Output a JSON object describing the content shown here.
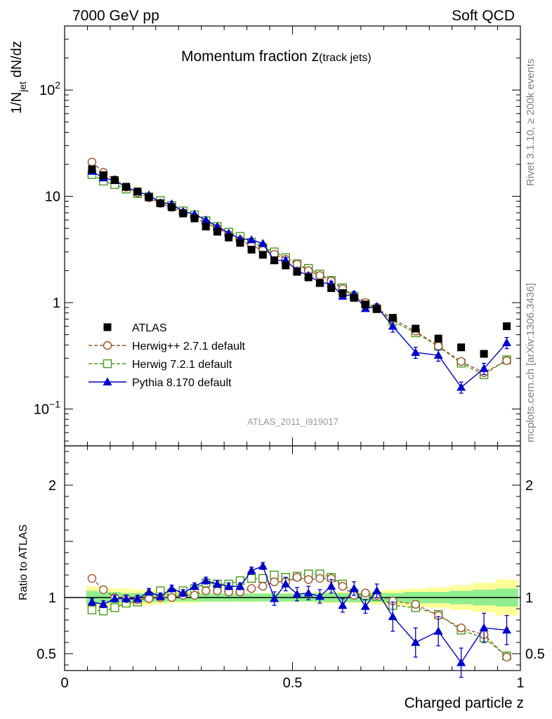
{
  "header": {
    "left": "7000 GeV pp",
    "right": "Soft QCD"
  },
  "side_labels": {
    "rivet": "Rivet 3.1.10, ≥ 200k events",
    "mcplots": "mcplots.cern.ch [arXiv:1306.3436]"
  },
  "colors": {
    "atlas": "#000000",
    "herwigpp": "#a0522d",
    "herwig7": "#4a9a1a",
    "pythia": "#0000cc",
    "band_inner": "#90ee90",
    "band_outer": "#ffff99"
  },
  "chart_data": [
    {
      "type": "scatter",
      "panel": "main",
      "title": "Momentum fraction z",
      "title_suffix": "(track jets)",
      "ylabel": "1/N_jet dN/dz",
      "ylabel_prefix": "1/N",
      "ylabel_sub": "jet",
      "ylabel_suffix": " dN/dz",
      "yscale": "log",
      "xlim": [
        0,
        1
      ],
      "ylim": [
        0.045,
        400
      ],
      "y_ticks": [
        {
          "value": 0.1,
          "base": "10",
          "exp": "−1"
        },
        {
          "value": 1,
          "base": "1",
          "exp": ""
        },
        {
          "value": 10,
          "base": "10",
          "exp": ""
        },
        {
          "value": 100,
          "base": "10",
          "exp": "2"
        }
      ],
      "watermark": "ATLAS_2011_I919017",
      "legend_position": "lower-left",
      "x": [
        0.06,
        0.085,
        0.11,
        0.135,
        0.16,
        0.185,
        0.21,
        0.235,
        0.26,
        0.285,
        0.31,
        0.335,
        0.36,
        0.385,
        0.41,
        0.435,
        0.46,
        0.485,
        0.51,
        0.535,
        0.56,
        0.585,
        0.61,
        0.635,
        0.66,
        0.685,
        0.72,
        0.77,
        0.82,
        0.87,
        0.92,
        0.97
      ],
      "series": [
        {
          "name": "ATLAS",
          "key": "atlas",
          "marker": "filled-square",
          "values": [
            18.0,
            15.8,
            14.2,
            12.3,
            11.1,
            9.8,
            8.6,
            7.9,
            6.9,
            6.2,
            5.2,
            4.65,
            4.1,
            3.65,
            3.15,
            2.82,
            2.5,
            2.24,
            1.95,
            1.73,
            1.53,
            1.37,
            1.23,
            1.11,
            0.96,
            0.87,
            0.72,
            0.57,
            0.46,
            0.38,
            0.33,
            0.6
          ]
        },
        {
          "name": "Herwig++ 2.7.1 default",
          "key": "herwigpp",
          "marker": "open-circle",
          "line": "dashed",
          "values": [
            21.0,
            16.8,
            14.3,
            12.2,
            10.8,
            9.7,
            8.6,
            7.9,
            7.0,
            6.3,
            5.6,
            5.0,
            4.35,
            3.85,
            3.45,
            3.1,
            2.85,
            2.55,
            2.3,
            2.0,
            1.8,
            1.6,
            1.35,
            1.14,
            1.0,
            0.89,
            0.7,
            0.54,
            0.39,
            0.28,
            0.22,
            0.285
          ]
        },
        {
          "name": "Herwig 7.2.1 default",
          "key": "herwig7",
          "marker": "open-square",
          "line": "dashed",
          "values": [
            16.0,
            13.9,
            12.9,
            11.7,
            10.6,
            9.9,
            9.1,
            8.2,
            7.3,
            6.7,
            5.9,
            5.2,
            4.6,
            4.2,
            3.7,
            3.3,
            3.0,
            2.65,
            2.32,
            2.1,
            1.86,
            1.62,
            1.38,
            1.15,
            0.98,
            0.88,
            0.67,
            0.52,
            0.39,
            0.27,
            0.21,
            0.29
          ]
        },
        {
          "name": "Pythia 8.170 default",
          "key": "pythia",
          "marker": "filled-triangle",
          "line": "solid",
          "values": [
            17.2,
            14.9,
            14.1,
            12.2,
            11.0,
            10.3,
            8.7,
            8.5,
            7.2,
            6.8,
            6.0,
            5.2,
            4.5,
            4.0,
            3.9,
            3.6,
            2.5,
            2.5,
            2.0,
            1.8,
            1.55,
            1.5,
            1.15,
            1.2,
            0.88,
            0.92,
            0.6,
            0.34,
            0.32,
            0.16,
            0.24,
            0.42
          ]
        }
      ]
    },
    {
      "type": "scatter",
      "panel": "ratio",
      "ylabel": "Ratio to ATLAS",
      "xlabel": "Charged particle z",
      "xlim": [
        0,
        1
      ],
      "ylim": [
        0.35,
        2.35
      ],
      "x_ticks": [
        {
          "value": 0,
          "label": "0"
        },
        {
          "value": 0.5,
          "label": "0.5"
        },
        {
          "value": 1,
          "label": "1"
        }
      ],
      "y_ticks": [
        {
          "value": 0.5,
          "label": "0.5"
        },
        {
          "value": 1,
          "label": "1"
        },
        {
          "value": 2,
          "label": "2"
        }
      ],
      "bands": {
        "inner": [
          0.06,
          0.05,
          0.05,
          0.04,
          0.04,
          0.04,
          0.04,
          0.035,
          0.035,
          0.035,
          0.035,
          0.035,
          0.035,
          0.035,
          0.035,
          0.035,
          0.035,
          0.035,
          0.035,
          0.035,
          0.04,
          0.04,
          0.04,
          0.04,
          0.04,
          0.04,
          0.04,
          0.05,
          0.05,
          0.06,
          0.07,
          0.08
        ],
        "outer": [
          0.1,
          0.09,
          0.08,
          0.08,
          0.07,
          0.07,
          0.06,
          0.05,
          0.05,
          0.05,
          0.04,
          0.04,
          0.04,
          0.04,
          0.04,
          0.04,
          0.04,
          0.04,
          0.04,
          0.04,
          0.05,
          0.05,
          0.05,
          0.05,
          0.05,
          0.06,
          0.07,
          0.08,
          0.09,
          0.11,
          0.13,
          0.16
        ]
      },
      "series": [
        {
          "name": "Herwig++ 2.7.1 default",
          "key": "herwigpp",
          "values": [
            1.17,
            1.07,
            1.0,
            0.99,
            0.98,
            0.99,
            1.0,
            1.0,
            1.02,
            1.02,
            1.06,
            1.06,
            1.05,
            1.05,
            1.08,
            1.1,
            1.14,
            1.14,
            1.18,
            1.16,
            1.17,
            1.17,
            1.1,
            1.02,
            1.04,
            1.02,
            0.97,
            0.94,
            0.84,
            0.73,
            0.67,
            0.47
          ]
        },
        {
          "name": "Herwig 7.2.1 default",
          "key": "herwig7",
          "values": [
            0.89,
            0.88,
            0.91,
            0.95,
            0.96,
            1.01,
            1.06,
            1.04,
            1.06,
            1.08,
            1.13,
            1.12,
            1.12,
            1.15,
            1.17,
            1.17,
            1.2,
            1.18,
            1.19,
            1.21,
            1.21,
            1.18,
            1.12,
            1.04,
            1.02,
            1.01,
            0.93,
            0.91,
            0.85,
            0.71,
            0.64,
            0.48
          ]
        },
        {
          "name": "Pythia 8.170 default",
          "key": "pythia",
          "values": [
            0.96,
            0.94,
            0.99,
            0.99,
            0.99,
            1.05,
            1.01,
            1.08,
            1.04,
            1.1,
            1.15,
            1.12,
            1.1,
            1.1,
            1.24,
            1.28,
            0.99,
            1.12,
            1.03,
            1.04,
            1.01,
            1.1,
            0.93,
            1.08,
            0.92,
            1.06,
            0.83,
            0.6,
            0.7,
            0.42,
            0.73,
            0.71
          ]
        }
      ]
    }
  ]
}
